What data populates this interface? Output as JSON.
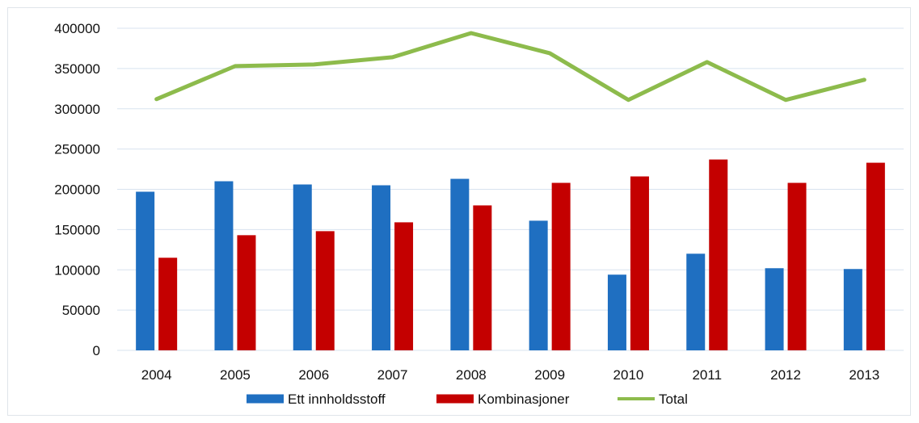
{
  "chart_data": {
    "type": "bar",
    "categories": [
      "2004",
      "2005",
      "2006",
      "2007",
      "2008",
      "2009",
      "2010",
      "2011",
      "2012",
      "2013"
    ],
    "series": [
      {
        "name": "Ett innholdsstoff",
        "type": "bar",
        "color": "#1f6fc1",
        "values": [
          197000,
          210000,
          206000,
          205000,
          213000,
          161000,
          94000,
          120000,
          102000,
          101000
        ]
      },
      {
        "name": "Kombinasjoner",
        "type": "bar",
        "color": "#c40000",
        "values": [
          115000,
          143000,
          148000,
          159000,
          180000,
          208000,
          216000,
          237000,
          208000,
          233000
        ]
      },
      {
        "name": "Total",
        "type": "line",
        "color": "#8dbb4c",
        "values": [
          312000,
          353000,
          355000,
          364000,
          394000,
          369000,
          311000,
          358000,
          311000,
          336000
        ]
      }
    ],
    "yticks": [
      "0",
      "50000",
      "100000",
      "150000",
      "200000",
      "250000",
      "300000",
      "350000",
      "400000"
    ],
    "ylim": [
      0,
      400000
    ],
    "grid": true,
    "legend_position": "bottom",
    "title": "",
    "xlabel": "",
    "ylabel": ""
  }
}
